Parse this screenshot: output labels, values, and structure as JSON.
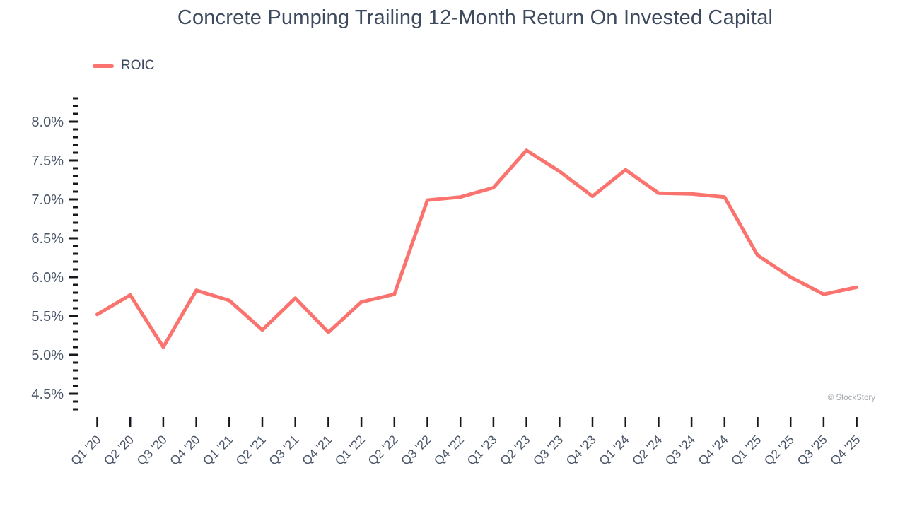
{
  "title": "Concrete Pumping Trailing 12-Month Return On Invested Capital",
  "legend": {
    "label": "ROIC"
  },
  "watermark": "© StockStory",
  "colors": {
    "line": "#FA736E",
    "title": "#3E4A5E",
    "axis_label": "#4A5568",
    "tick": "#16181D",
    "watermark": "#A3A8AE"
  },
  "chart_data": {
    "type": "line",
    "title": "Concrete Pumping Trailing 12-Month Return On Invested Capital",
    "xlabel": "",
    "ylabel": "",
    "y_unit": "%",
    "grid": false,
    "legend_position": "top-left",
    "categories": [
      "Q1 '20",
      "Q2 '20",
      "Q3 '20",
      "Q4 '20",
      "Q1 '21",
      "Q2 '21",
      "Q3 '21",
      "Q4 '21",
      "Q1 '22",
      "Q2 '22",
      "Q3 '22",
      "Q4 '22",
      "Q1 '23",
      "Q2 '23",
      "Q3 '23",
      "Q4 '23",
      "Q1 '24",
      "Q2 '24",
      "Q3 '24",
      "Q4 '24",
      "Q1 '25",
      "Q2 '25",
      "Q3 '25",
      "Q4 '25"
    ],
    "series": [
      {
        "name": "ROIC",
        "values": [
          5.52,
          5.77,
          5.1,
          5.83,
          5.7,
          5.32,
          5.73,
          5.29,
          5.68,
          5.78,
          6.99,
          7.03,
          7.15,
          7.63,
          7.36,
          7.04,
          7.38,
          7.08,
          7.07,
          7.03,
          6.28,
          6.0,
          5.78,
          5.87
        ]
      }
    ],
    "ylim": [
      4.3,
      8.3
    ],
    "y_axis": {
      "tick_values": [
        8.0,
        7.5,
        7.0,
        6.5,
        6.0,
        5.5,
        5.0,
        4.5
      ],
      "tick_labels": [
        "8.0%",
        "7.5%",
        "7.0%",
        "6.5%",
        "6.0%",
        "5.5%",
        "5.0%",
        "4.5%"
      ],
      "minor_step": 0.1
    }
  }
}
